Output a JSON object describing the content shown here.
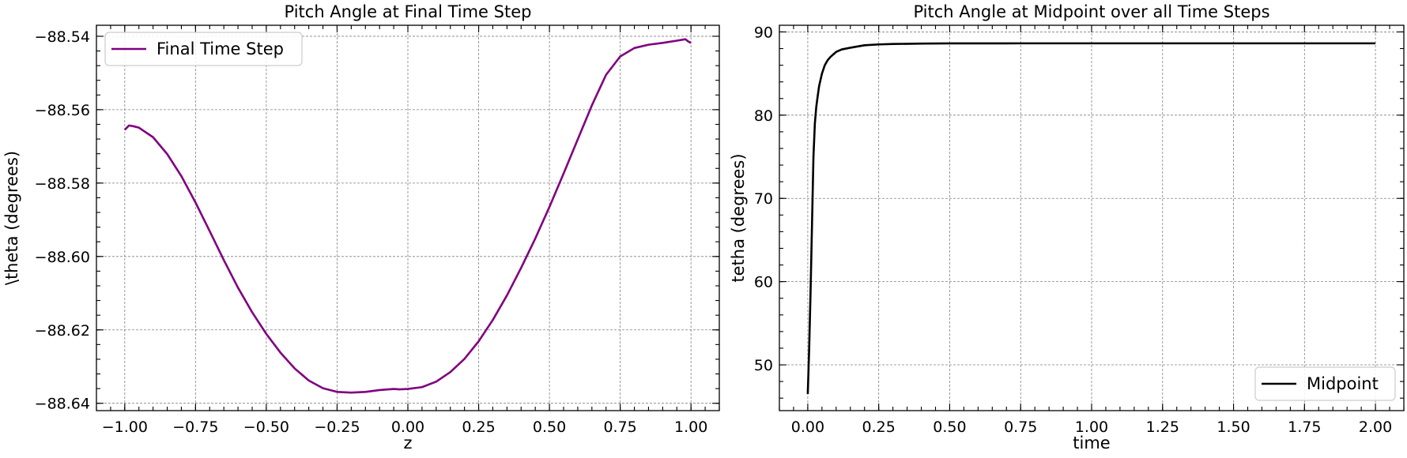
{
  "chart_data": [
    {
      "type": "line",
      "title": "Pitch Angle at Final Time Step",
      "xlabel": "z",
      "ylabel": "\\theta (degrees)",
      "xlim": [
        -1.1,
        1.1
      ],
      "ylim": [
        -88.642,
        -88.537
      ],
      "xticks": [
        -1.0,
        -0.75,
        -0.5,
        -0.25,
        0.0,
        0.25,
        0.5,
        0.75,
        1.0
      ],
      "xtick_labels": [
        "−1.00",
        "−0.75",
        "−0.50",
        "−0.25",
        "0.00",
        "0.25",
        "0.50",
        "0.75",
        "1.00"
      ],
      "yticks": [
        -88.64,
        -88.62,
        -88.6,
        -88.58,
        -88.56,
        -88.54
      ],
      "ytick_labels": [
        "−88.64",
        "−88.62",
        "−88.60",
        "−88.58",
        "−88.56",
        "−88.54"
      ],
      "grid": true,
      "legend": "upper-left",
      "series": [
        {
          "name": "Final Time Step",
          "color": "#800080",
          "x": [
            -1.0,
            -0.985,
            -0.97,
            -0.95,
            -0.9,
            -0.85,
            -0.8,
            -0.75,
            -0.7,
            -0.65,
            -0.6,
            -0.55,
            -0.5,
            -0.45,
            -0.4,
            -0.35,
            -0.3,
            -0.25,
            -0.2,
            -0.15,
            -0.1,
            -0.05,
            -0.03,
            0.0,
            0.05,
            0.1,
            0.15,
            0.2,
            0.25,
            0.3,
            0.35,
            0.4,
            0.45,
            0.5,
            0.55,
            0.6,
            0.65,
            0.7,
            0.75,
            0.8,
            0.85,
            0.9,
            0.95,
            0.98,
            0.99,
            1.0
          ],
          "y": [
            -88.5655,
            -88.5643,
            -88.5645,
            -88.5649,
            -88.5675,
            -88.5721,
            -88.5781,
            -88.5853,
            -88.5931,
            -88.601,
            -88.6085,
            -88.6152,
            -88.6211,
            -88.6262,
            -88.6305,
            -88.6338,
            -88.6359,
            -88.6369,
            -88.6371,
            -88.6369,
            -88.6364,
            -88.6361,
            -88.6362,
            -88.6361,
            -88.6356,
            -88.6341,
            -88.6315,
            -88.6279,
            -88.6231,
            -88.6173,
            -88.6106,
            -88.6031,
            -88.5951,
            -88.5865,
            -88.5774,
            -88.5681,
            -88.5588,
            -88.5505,
            -88.5455,
            -88.5432,
            -88.5423,
            -88.5418,
            -88.5412,
            -88.5408,
            -88.5414,
            -88.5418
          ]
        }
      ]
    },
    {
      "type": "line",
      "title": "Pitch Angle at Midpoint over all Time Steps",
      "xlabel": "time",
      "ylabel": "tetha (degrees)",
      "xlim": [
        -0.1,
        2.1
      ],
      "ylim": [
        44.5,
        90.8
      ],
      "xticks": [
        0.0,
        0.25,
        0.5,
        0.75,
        1.0,
        1.25,
        1.5,
        1.75,
        2.0
      ],
      "xtick_labels": [
        "0.00",
        "0.25",
        "0.50",
        "0.75",
        "1.00",
        "1.25",
        "1.50",
        "1.75",
        "2.00"
      ],
      "yticks": [
        50,
        60,
        70,
        80,
        90
      ],
      "ytick_labels": [
        "50",
        "60",
        "70",
        "80",
        "90"
      ],
      "grid": true,
      "legend": "lower-right",
      "series": [
        {
          "name": "Midpoint",
          "color": "#000000",
          "x": [
            0.0,
            0.005,
            0.01,
            0.015,
            0.02,
            0.025,
            0.03,
            0.035,
            0.04,
            0.05,
            0.06,
            0.07,
            0.08,
            0.09,
            0.1,
            0.12,
            0.15,
            0.2,
            0.25,
            0.3,
            0.4,
            0.5,
            0.75,
            1.0,
            1.25,
            1.5,
            1.75,
            2.0
          ],
          "y": [
            46.5,
            52,
            59,
            67,
            75,
            79,
            81,
            82.3,
            83.5,
            85.0,
            86.0,
            86.6,
            87.0,
            87.3,
            87.6,
            87.9,
            88.1,
            88.4,
            88.5,
            88.55,
            88.6,
            88.62,
            88.63,
            88.63,
            88.63,
            88.63,
            88.63,
            88.63
          ]
        }
      ]
    }
  ]
}
